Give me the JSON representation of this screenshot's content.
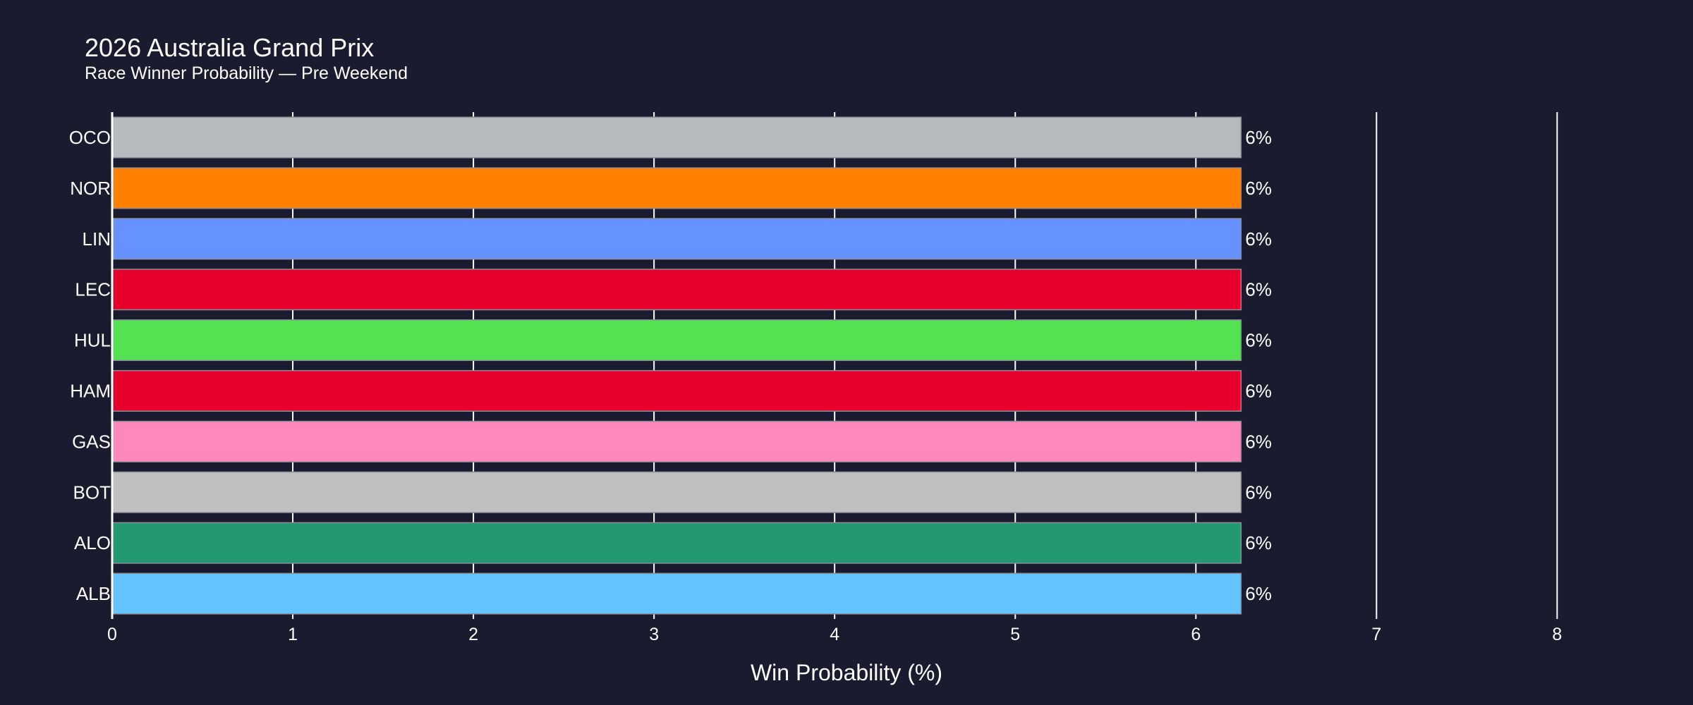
{
  "chart_data": {
    "type": "bar",
    "orientation": "horizontal",
    "title": "2026 Australia Grand Prix",
    "subtitle": "Race Winner Probability — Pre Weekend",
    "xlabel": "Win Probability (%)",
    "ylabel": "",
    "xlim": [
      0,
      8.35
    ],
    "xticks": [
      0,
      1,
      2,
      3,
      4,
      5,
      6,
      7,
      8
    ],
    "grid": "vertical",
    "background": "#1a1b2e",
    "categories": [
      "OCO",
      "NOR",
      "LIN",
      "LEC",
      "HUL",
      "HAM",
      "GAS",
      "BOT",
      "ALO",
      "ALB"
    ],
    "values": [
      6.25,
      6.25,
      6.25,
      6.25,
      6.25,
      6.25,
      6.25,
      6.25,
      6.25,
      6.25
    ],
    "data_labels": [
      "6%",
      "6%",
      "6%",
      "6%",
      "6%",
      "6%",
      "6%",
      "6%",
      "6%",
      "6%"
    ],
    "colors": [
      "#b6babd",
      "#ff8000",
      "#6692ff",
      "#e8002d",
      "#52e252",
      "#e8002d",
      "#ff87bc",
      "#c0c0c0",
      "#229971",
      "#64c4ff"
    ]
  }
}
